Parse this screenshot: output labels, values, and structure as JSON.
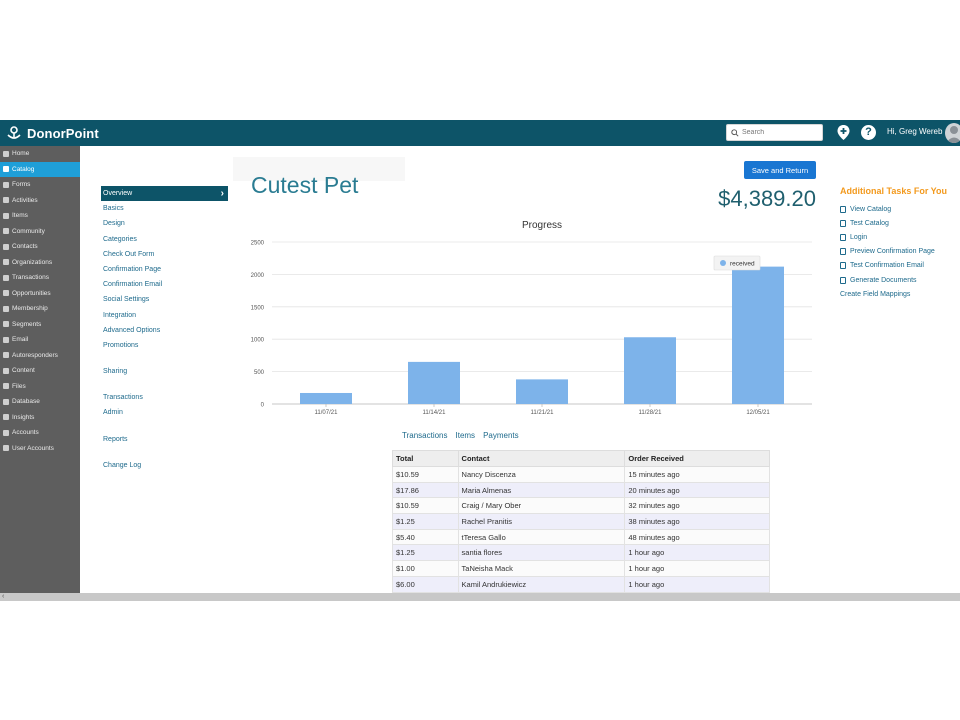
{
  "header": {
    "logo_text": "DonorPoint",
    "search_placeholder": "Search",
    "greeting": "Hi, Greg Wereb"
  },
  "sidebar": {
    "items": [
      {
        "label": "Home",
        "icon": "home-icon"
      },
      {
        "label": "Catalog",
        "icon": "cart-icon",
        "active": true
      },
      {
        "label": "Forms",
        "icon": "forms-icon"
      },
      {
        "label": "Activities",
        "icon": "activities-icon"
      },
      {
        "label": "Items",
        "icon": "items-icon"
      },
      {
        "label": "Community",
        "icon": "community-icon"
      },
      {
        "label": "Contacts",
        "icon": "contacts-icon"
      },
      {
        "label": "Organizations",
        "icon": "organizations-icon"
      },
      {
        "label": "Transactions",
        "icon": "transactions-icon"
      },
      {
        "label": "Opportunities",
        "icon": "opportunities-icon"
      },
      {
        "label": "Membership",
        "icon": "membership-icon"
      },
      {
        "label": "Segments",
        "icon": "segments-icon"
      },
      {
        "label": "Email",
        "icon": "email-icon"
      },
      {
        "label": "Autoresponders",
        "icon": "autoresponders-icon"
      },
      {
        "label": "Content",
        "icon": "content-icon"
      },
      {
        "label": "Files",
        "icon": "files-icon"
      },
      {
        "label": "Database",
        "icon": "database-icon"
      },
      {
        "label": "Insights",
        "icon": "insights-icon"
      },
      {
        "label": "Accounts",
        "icon": "accounts-icon"
      },
      {
        "label": "User Accounts",
        "icon": "user-accounts-icon"
      }
    ]
  },
  "submenu": {
    "items": [
      {
        "label": "Overview",
        "active": true
      },
      {
        "label": "Basics"
      },
      {
        "label": "Design"
      },
      {
        "label": "Categories"
      },
      {
        "label": "Check Out Form"
      },
      {
        "label": "Confirmation Page"
      },
      {
        "label": "Confirmation Email"
      },
      {
        "label": "Social Settings"
      },
      {
        "label": "Integration"
      },
      {
        "label": "Advanced Options"
      },
      {
        "label": "Promotions"
      },
      {
        "gap": true
      },
      {
        "label": "Sharing"
      },
      {
        "gap": true
      },
      {
        "label": "Transactions"
      },
      {
        "label": "Admin"
      },
      {
        "gap": true
      },
      {
        "label": "Reports"
      },
      {
        "gap": true
      },
      {
        "label": "Change Log"
      }
    ]
  },
  "main": {
    "title": "Cutest Pet",
    "save_label": "Save and Return",
    "total": "$4,389.20",
    "tabs": [
      "Transactions",
      "Items",
      "Payments"
    ]
  },
  "chart_data": {
    "type": "bar",
    "title": "Progress",
    "categories": [
      "11/07/21",
      "11/14/21",
      "11/21/21",
      "11/28/21",
      "12/05/21"
    ],
    "series": [
      {
        "name": "received",
        "values": [
          170,
          650,
          380,
          1030,
          2120
        ],
        "color": "#7db3ea"
      }
    ],
    "ylim": [
      0,
      2500
    ],
    "yticks": [
      0,
      500,
      1000,
      1500,
      2000,
      2500
    ],
    "grid": true,
    "legend": "top-right"
  },
  "table": {
    "columns": [
      "Total",
      "Contact",
      "Order Received"
    ],
    "rows": [
      [
        "$10.59",
        "Nancy Discenza",
        "15 minutes ago"
      ],
      [
        "$17.86",
        "Maria Almenas",
        "20 minutes ago"
      ],
      [
        "$10.59",
        "Craig / Mary Ober",
        "32 minutes ago"
      ],
      [
        "$1.25",
        "Rachel Pranitis",
        "38 minutes ago"
      ],
      [
        "$5.40",
        "tTeresa Gallo",
        "48 minutes ago"
      ],
      [
        "$1.25",
        "santia flores",
        "1 hour ago"
      ],
      [
        "$1.00",
        "TaNeisha Mack",
        "1 hour ago"
      ],
      [
        "$6.00",
        "Kamil Andrukiewicz",
        "1 hour ago"
      ]
    ]
  },
  "tasks": {
    "title": "Additional Tasks For You",
    "items": [
      {
        "label": "View Catalog",
        "icon": "external-link-icon"
      },
      {
        "label": "Test Catalog",
        "icon": "flask-icon"
      },
      {
        "label": "Login",
        "icon": "login-icon"
      },
      {
        "label": "Preview Confirmation Page",
        "icon": "document-icon"
      },
      {
        "label": "Test Confirmation Email",
        "icon": "send-icon"
      },
      {
        "label": "Generate Documents",
        "icon": "document-icon"
      },
      {
        "label": "Create Field Mappings",
        "icon": ""
      }
    ]
  },
  "colors": {
    "header": "#0d5468",
    "sidebar": "#5e5e5e",
    "sidebar_active": "#1f9fd8",
    "accent_orange": "#f39a1e",
    "button_blue": "#1976d2"
  }
}
